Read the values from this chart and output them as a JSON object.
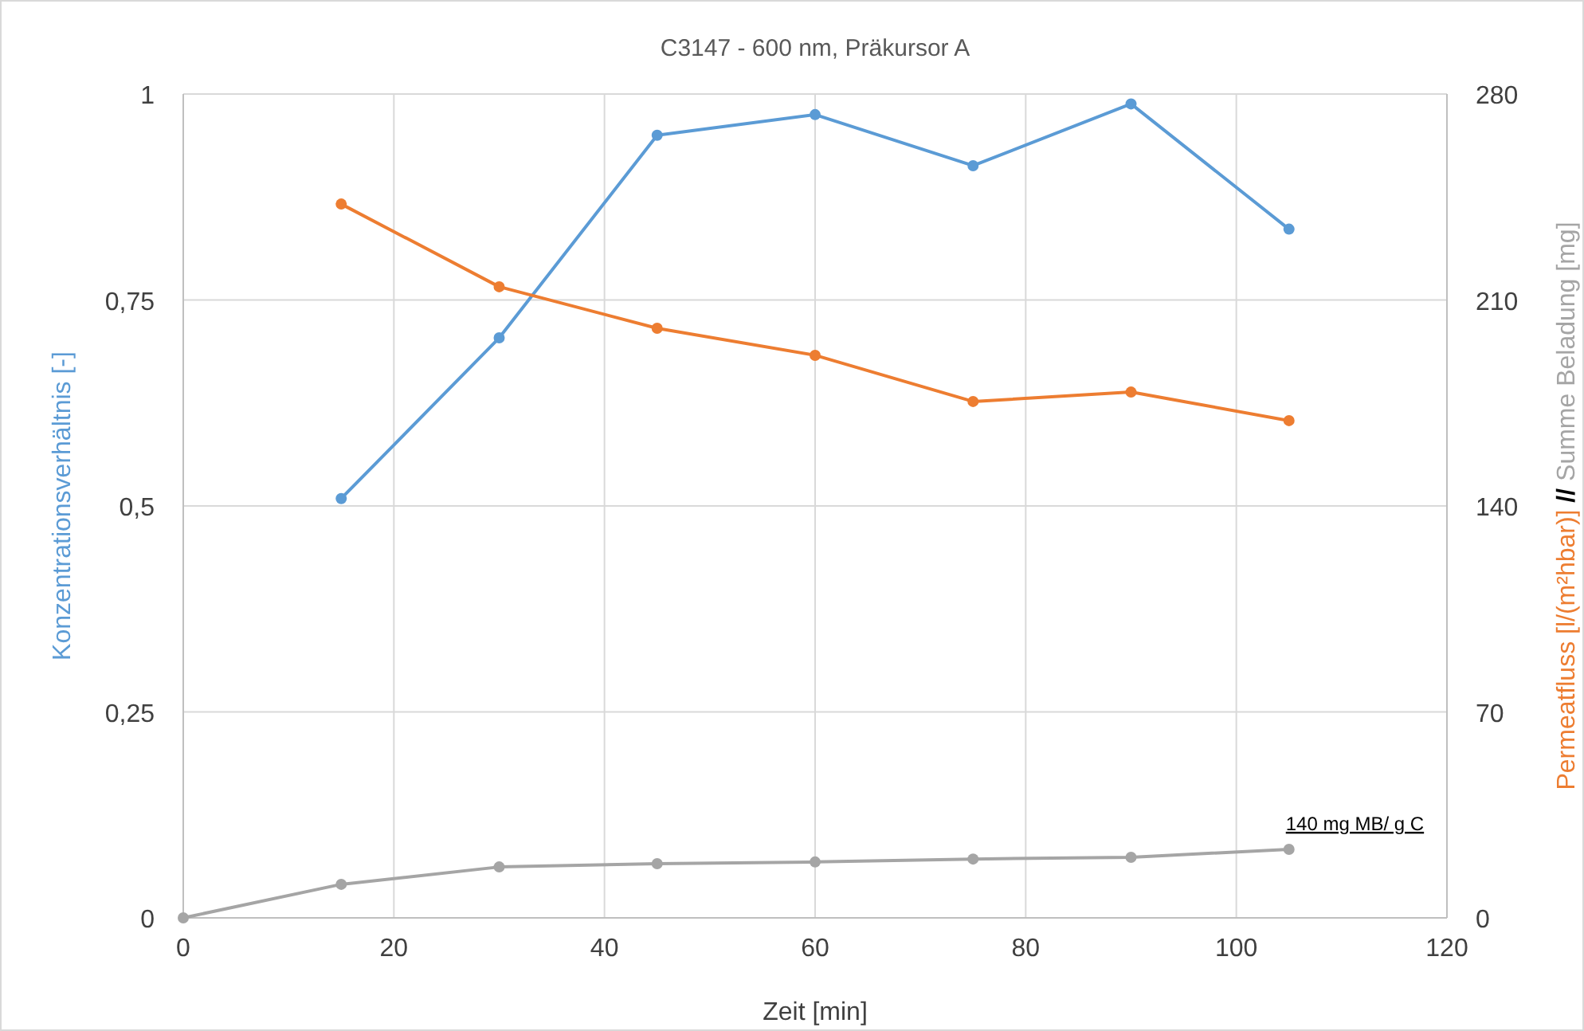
{
  "chart_data": {
    "type": "line",
    "title": "C3147 - 600 nm, Präkursor A",
    "xlabel": "Zeit [min]",
    "ylabel": "Konzentrationsverhältnis  [-]",
    "y2label": "Permeatfluss [l/(m²hbar)] // Summe Beladung [mg]",
    "xlim": [
      0,
      120
    ],
    "xticks": [
      0,
      20,
      40,
      60,
      80,
      100,
      120
    ],
    "ylim": [
      0,
      1
    ],
    "yticks": [
      0,
      {
        "value": 0.25,
        "label": "0,25"
      },
      {
        "value": 0.5,
        "label": "0,5"
      },
      {
        "value": 0.75,
        "label": "0,75"
      },
      1
    ],
    "y2lim": [
      0,
      280
    ],
    "y2ticks": [
      0,
      70,
      140,
      210,
      280
    ],
    "grid": true,
    "marker": "circle",
    "line_style": "solid",
    "annotations": [
      "140 mg MB/ g C"
    ],
    "series": [
      {
        "color": "#5b9bd5",
        "x": [
          15,
          30,
          45,
          60,
          75,
          90,
          105
        ],
        "values": [
          0.509,
          0.704,
          0.95,
          0.975,
          0.913,
          0.988,
          0.836
        ]
      },
      {
        "color": "#ed7d31",
        "axis": "y2",
        "x": [
          15,
          30,
          45,
          60,
          75,
          90,
          105
        ],
        "values": [
          242.6,
          214.5,
          200.4,
          191.2,
          175.5,
          178.7,
          169
        ]
      },
      {
        "color": "#a5a5a5",
        "axis": "y2",
        "x": [
          0,
          15,
          30,
          45,
          60,
          75,
          90,
          105
        ],
        "values": [
          0,
          11.4,
          17.3,
          18.4,
          19,
          20,
          20.6,
          23.3
        ]
      }
    ]
  }
}
